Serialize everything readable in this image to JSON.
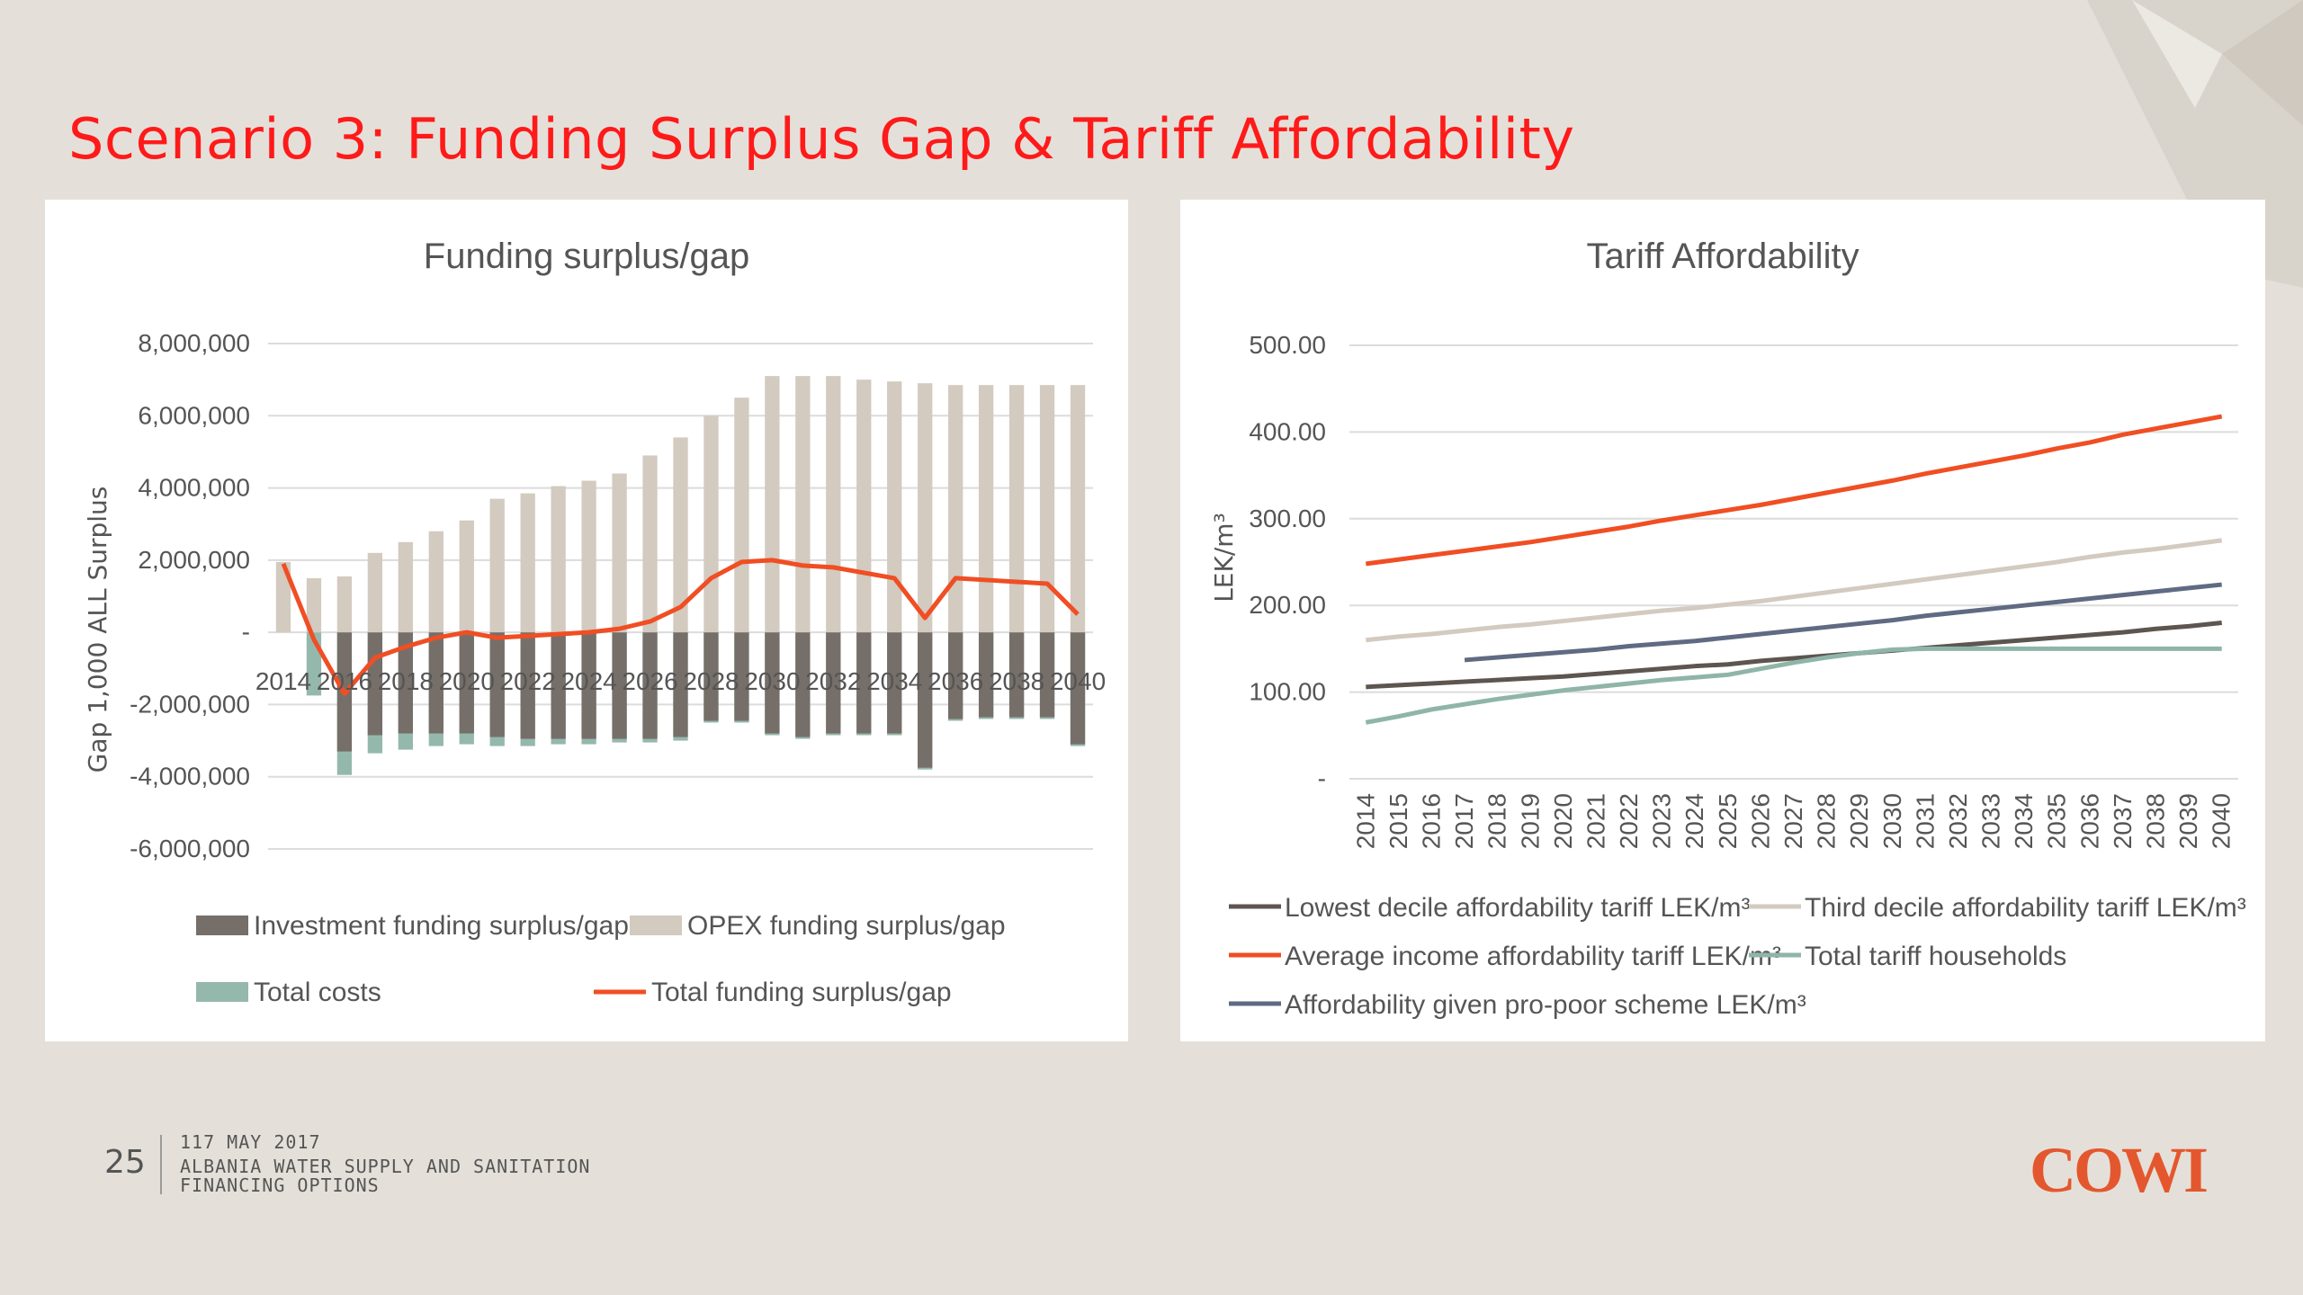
{
  "slide": {
    "title": "Scenario 3: Funding Surplus Gap & Tariff Affordability",
    "page_number": "25",
    "date": "117 MAY 2017",
    "subtitle": "ALBANIA WATER SUPPLY AND SANITATION FINANCING OPTIONS",
    "logo_text": "COWI",
    "colors": {
      "title": "#ff1a1a",
      "logo": "#e4572e",
      "background": "#e4e0d9"
    }
  },
  "chart_data": [
    {
      "type": "bar",
      "title": "Funding surplus/gap",
      "ylabel": "Gap   1,000 ALL   Surplus",
      "ylim": [
        -6000000,
        8000000
      ],
      "yticks": [
        {
          "value": 8000000,
          "label": "8,000,000"
        },
        {
          "value": 6000000,
          "label": "6,000,000"
        },
        {
          "value": 4000000,
          "label": "4,000,000"
        },
        {
          "value": 2000000,
          "label": "2,000,000"
        },
        {
          "value": 0,
          "label": "-"
        },
        {
          "value": -2000000,
          "label": "-2,000,000"
        },
        {
          "value": -4000000,
          "label": "-4,000,000"
        },
        {
          "value": -6000000,
          "label": "-6,000,000"
        }
      ],
      "grid": true,
      "legend_position": "bottom",
      "x": [
        2014,
        2015,
        2016,
        2017,
        2018,
        2019,
        2020,
        2021,
        2022,
        2023,
        2024,
        2025,
        2026,
        2027,
        2028,
        2029,
        2030,
        2031,
        2032,
        2033,
        2034,
        2035,
        2036,
        2037,
        2038,
        2039,
        2040
      ],
      "x_tick_labels": [
        "2014",
        "2016",
        "2018",
        "2020",
        "2022",
        "2024",
        "2026",
        "2028",
        "2030",
        "2032",
        "2034",
        "2036",
        "2038",
        "2040"
      ],
      "series": [
        {
          "name": "Investment funding surplus/gap",
          "kind": "bar",
          "color": "#766f69",
          "values": [
            0,
            0,
            -3300000,
            -2850000,
            -2800000,
            -2800000,
            -2800000,
            -2900000,
            -2950000,
            -2950000,
            -2950000,
            -2950000,
            -2950000,
            -2900000,
            -2450000,
            -2450000,
            -2800000,
            -2900000,
            -2800000,
            -2800000,
            -2800000,
            -3750000,
            -2400000,
            -2350000,
            -2350000,
            -2350000,
            -3100000
          ]
        },
        {
          "name": "OPEX funding surplus/gap",
          "kind": "bar",
          "color": "#d3cac0",
          "values": [
            1950000,
            1500000,
            1550000,
            2200000,
            2500000,
            2800000,
            3100000,
            3700000,
            3850000,
            4050000,
            4200000,
            4400000,
            4900000,
            5400000,
            6000000,
            6500000,
            7100000,
            7100000,
            7100000,
            7000000,
            6950000,
            6900000,
            6850000,
            6850000,
            6850000,
            6850000,
            6850000
          ]
        },
        {
          "name": "Total costs",
          "kind": "bar",
          "color": "#95b8ad",
          "values": [
            0,
            -1750000,
            -3950000,
            -3350000,
            -3250000,
            -3150000,
            -3100000,
            -3150000,
            -3150000,
            -3100000,
            -3100000,
            -3050000,
            -3050000,
            -3000000,
            -2500000,
            -2500000,
            -2850000,
            -2950000,
            -2850000,
            -2850000,
            -2850000,
            -3800000,
            -2450000,
            -2400000,
            -2400000,
            -2400000,
            -3150000
          ]
        },
        {
          "name": "Total funding surplus/gap",
          "kind": "line",
          "color": "#f04e23",
          "values": [
            1900000,
            -200000,
            -1700000,
            -700000,
            -400000,
            -150000,
            0,
            -150000,
            -100000,
            -50000,
            0,
            100000,
            300000,
            700000,
            1500000,
            1950000,
            2000000,
            1850000,
            1800000,
            1650000,
            1500000,
            400000,
            1500000,
            1450000,
            1400000,
            1350000,
            500000
          ]
        }
      ]
    },
    {
      "type": "line",
      "title": "Tariff Affordability",
      "ylabel": "LEK/m³",
      "ylim": [
        0,
        500
      ],
      "yticks": [
        {
          "value": 500,
          "label": "500.00"
        },
        {
          "value": 400,
          "label": "400.00"
        },
        {
          "value": 300,
          "label": "300.00"
        },
        {
          "value": 200,
          "label": "200.00"
        },
        {
          "value": 100,
          "label": "100.00"
        },
        {
          "value": 0,
          "label": "-"
        }
      ],
      "grid": true,
      "legend_position": "bottom",
      "x": [
        2014,
        2015,
        2016,
        2017,
        2018,
        2019,
        2020,
        2021,
        2022,
        2023,
        2024,
        2025,
        2026,
        2027,
        2028,
        2029,
        2030,
        2031,
        2032,
        2033,
        2034,
        2035,
        2036,
        2037,
        2038,
        2039,
        2040
      ],
      "series": [
        {
          "name": "Lowest decile affordability tariff  LEK/m³",
          "color": "#5d5550",
          "values": [
            106,
            108,
            110,
            112,
            114,
            116,
            118,
            121,
            124,
            127,
            130,
            132,
            136,
            139,
            142,
            145,
            148,
            151,
            154,
            157,
            160,
            163,
            166,
            169,
            173,
            176,
            180
          ]
        },
        {
          "name": "Third decile affordability tariff  LEK/m³",
          "color": "#d3cac0",
          "values": [
            160,
            164,
            167,
            171,
            175,
            178,
            182,
            186,
            190,
            194,
            197,
            201,
            205,
            210,
            215,
            220,
            225,
            230,
            235,
            240,
            245,
            250,
            256,
            261,
            265,
            270,
            275
          ]
        },
        {
          "name": "Average income affordability tariff  LEK/m³",
          "color": "#f04e23",
          "values": [
            248,
            253,
            258,
            263,
            268,
            273,
            279,
            285,
            291,
            298,
            304,
            310,
            316,
            323,
            330,
            337,
            344,
            352,
            359,
            366,
            373,
            381,
            388,
            397,
            404,
            411,
            418
          ]
        },
        {
          "name": "Total tariff households",
          "color": "#8fb5a8",
          "values": [
            65,
            72,
            80,
            86,
            92,
            97,
            102,
            106,
            110,
            114,
            117,
            120,
            127,
            134,
            140,
            145,
            149,
            150,
            150,
            150,
            150,
            150,
            150,
            150,
            150,
            150,
            150
          ]
        },
        {
          "name": "Affordability given pro-poor scheme  LEK/m³",
          "color": "#5f6b82",
          "values": [
            null,
            null,
            null,
            137,
            140,
            143,
            146,
            149,
            153,
            156,
            159,
            163,
            167,
            171,
            175,
            179,
            183,
            188,
            192,
            196,
            200,
            204,
            208,
            212,
            216,
            220,
            224
          ]
        }
      ]
    }
  ]
}
